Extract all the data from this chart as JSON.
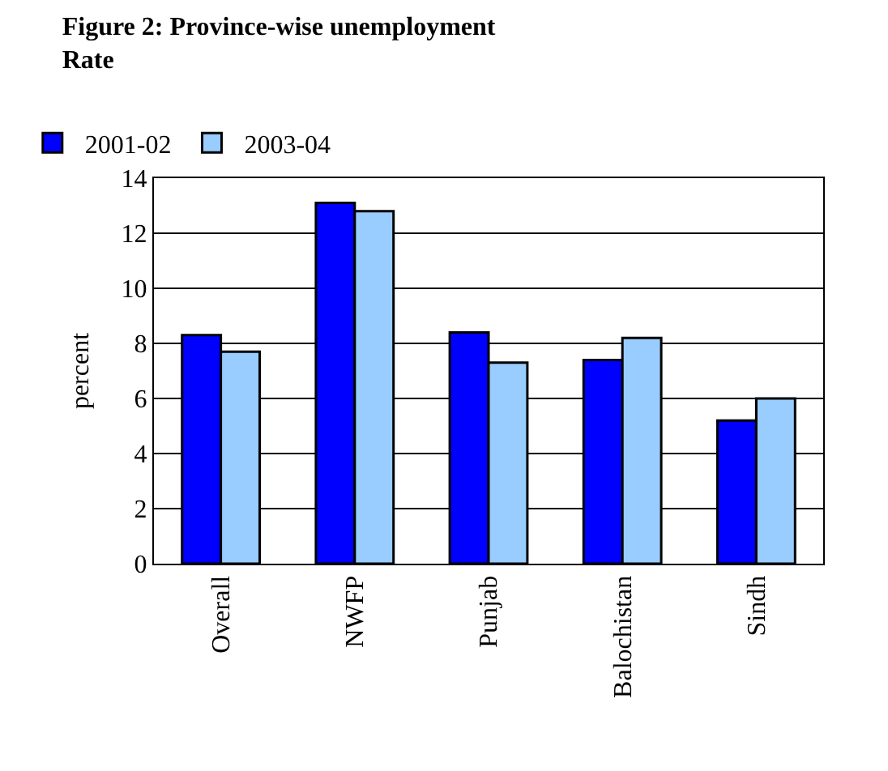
{
  "chart_data": {
    "type": "bar",
    "title": "Figure 2: Province-wise unemployment\nRate",
    "ylabel": "percent",
    "categories": [
      "Overall",
      "NWFP",
      "Punjab",
      "Balochistan",
      "Sindh"
    ],
    "series": [
      {
        "name": "2001-02",
        "color": "#0000ff",
        "values": [
          8.3,
          13.1,
          8.4,
          7.4,
          5.2
        ]
      },
      {
        "name": "2003-04",
        "color": "#99ccff",
        "values": [
          7.7,
          12.8,
          7.3,
          8.2,
          6.0
        ]
      }
    ],
    "ylim": [
      0,
      14
    ],
    "yticks": [
      0,
      2,
      4,
      6,
      8,
      10,
      12,
      14
    ],
    "grid": "y",
    "legend": "top left"
  }
}
